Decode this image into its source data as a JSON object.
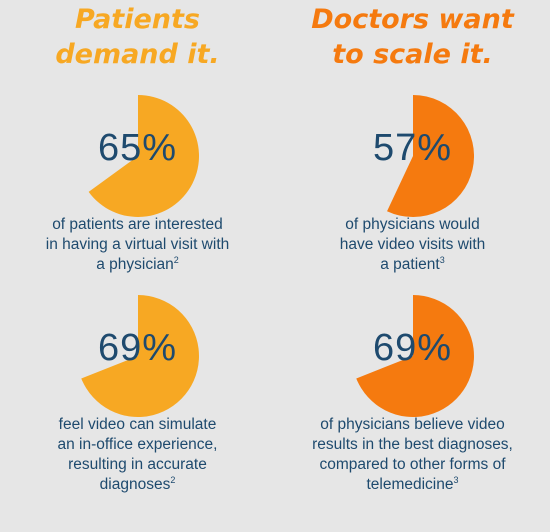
{
  "headings": {
    "left": [
      "Patients",
      "demand it."
    ],
    "right": [
      "Doctors want",
      "to scale it."
    ]
  },
  "colors": {
    "background": "#e6e6e6",
    "patients": "#f7a823",
    "doctors": "#f57a0f",
    "text": "#1e4a6e"
  },
  "chart_data": [
    {
      "type": "pie",
      "value": 65,
      "label": "65%",
      "caption_lines": [
        "of patients are interested",
        "in having a virtual visit with",
        "a physician"
      ],
      "footnote": "2",
      "color": "#f7a823"
    },
    {
      "type": "pie",
      "value": 57,
      "label": "57%",
      "caption_lines": [
        "of physicians would",
        "have video visits with",
        "a patient"
      ],
      "footnote": "3",
      "color": "#f57a0f"
    },
    {
      "type": "pie",
      "value": 69,
      "label": "69%",
      "caption_lines": [
        "feel video can simulate",
        "an in-office experience,",
        "resulting in accurate",
        "diagnoses"
      ],
      "footnote": "2",
      "color": "#f7a823"
    },
    {
      "type": "pie",
      "value": 69,
      "label": "69%",
      "caption_lines": [
        "of physicians believe video",
        "results in the best diagnoses,",
        "compared to other forms of",
        "telemedicine"
      ],
      "footnote": "3",
      "color": "#f57a0f"
    }
  ]
}
